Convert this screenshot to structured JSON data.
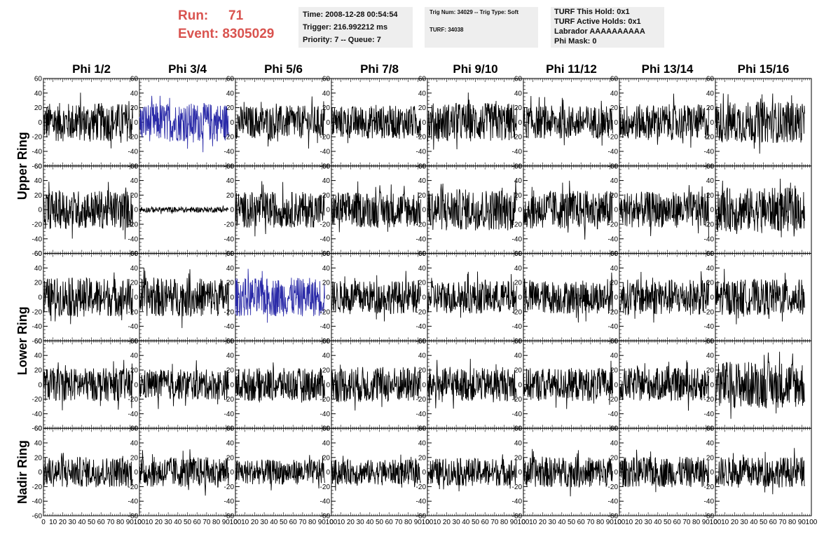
{
  "header": {
    "run_label": "Run:",
    "run_value": "71",
    "event_label": "Event:",
    "event_value": "8305029",
    "time": "Time: 2008-12-28 00:54:54",
    "trigger": "Trigger: 216.992212 ms",
    "priority": "Priority: 7 -- Queue: 7",
    "trig_info": "Trig Num: 34029 -- Trig Type: Soft",
    "turf": "TURF: 34038",
    "turf_this_hold": "TURF This Hold: 0x1",
    "turf_active_holds": "TURF Active Holds: 0x1",
    "labrador": "Labrador AAAAAAAAAA",
    "phi_mask": "Phi Mask: 0"
  },
  "colors": {
    "waveform": "#000000",
    "highlight_waveform": "#2b2ba8",
    "run_text": "#d9534f",
    "info_box": "#eeeeee"
  },
  "chart_data": {
    "type": "line",
    "columns": [
      "Phi 1/2",
      "Phi 3/4",
      "Phi 5/6",
      "Phi 7/8",
      "Phi 9/10",
      "Phi 11/12",
      "Phi 13/14",
      "Phi 15/16"
    ],
    "rings": [
      {
        "label": "Upper Ring",
        "rows": [
          0,
          1
        ]
      },
      {
        "label": "Lower Ring",
        "rows": [
          2,
          3
        ]
      },
      {
        "label": "Nadir Ring",
        "rows": [
          4
        ]
      }
    ],
    "xlim": [
      0,
      100
    ],
    "ylim": [
      -60,
      60
    ],
    "x_ticks": [
      0,
      10,
      20,
      30,
      40,
      50,
      60,
      70,
      80,
      90,
      100
    ],
    "y_ticks": [
      -60,
      -40,
      -20,
      0,
      20,
      40,
      60
    ],
    "sample_x_range": [
      0,
      93
    ],
    "highlighted_panels": [
      {
        "row": 0,
        "col": 1,
        "color": "#2b2ba8"
      },
      {
        "row": 2,
        "col": 2,
        "color": "#2b2ba8"
      }
    ],
    "panel_amplitudes": [
      [
        14,
        14,
        12,
        12,
        14,
        12,
        13,
        15
      ],
      [
        14,
        2,
        13,
        13,
        15,
        14,
        13,
        16
      ],
      [
        14,
        14,
        14,
        12,
        12,
        12,
        13,
        13
      ],
      [
        12,
        11,
        12,
        13,
        12,
        12,
        12,
        17
      ],
      [
        11,
        11,
        9,
        9,
        10,
        11,
        11,
        11
      ]
    ]
  }
}
